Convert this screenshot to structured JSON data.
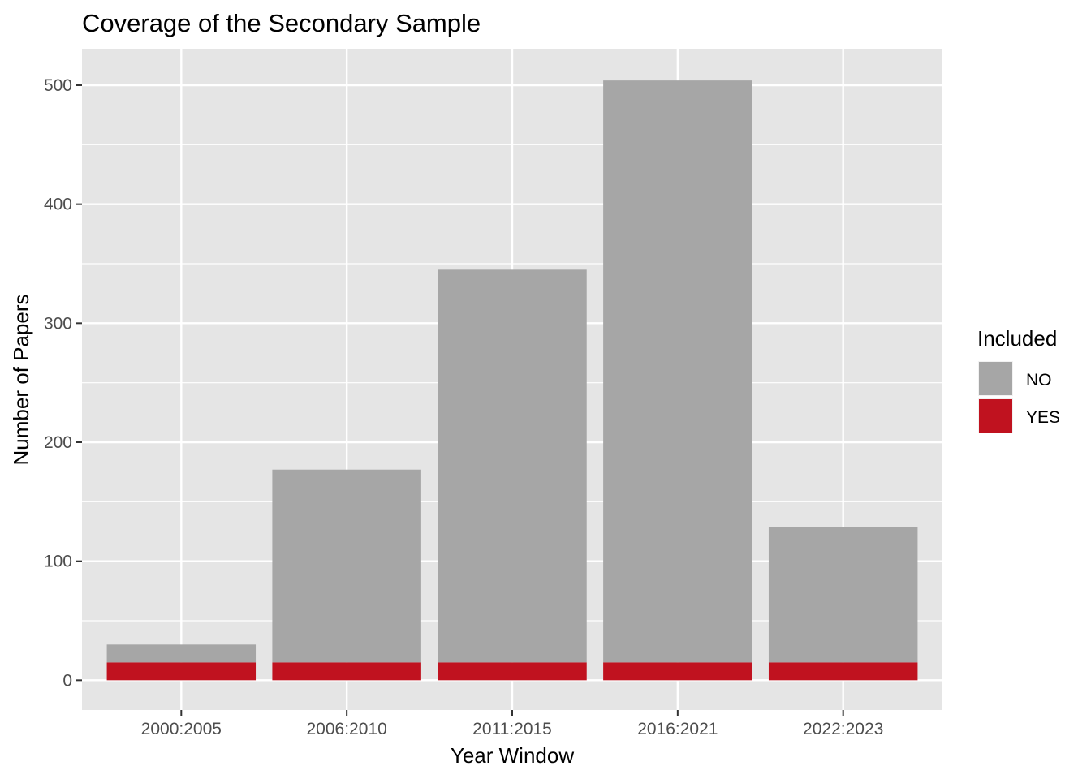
{
  "chart_data": {
    "type": "bar",
    "stacked": true,
    "title": "Coverage of the Secondary Sample",
    "xlabel": "Year Window",
    "ylabel": "Number of Papers",
    "categories": [
      "2000:2005",
      "2006:2010",
      "2011:2015",
      "2016:2021",
      "2022:2023"
    ],
    "series": [
      {
        "name": "YES",
        "color": "#C0121F",
        "values": [
          15,
          15,
          15,
          15,
          15
        ]
      },
      {
        "name": "NO",
        "color": "#A6A6A6",
        "values": [
          15,
          162,
          330,
          489,
          114
        ]
      }
    ],
    "totals": [
      30,
      177,
      345,
      504,
      129
    ],
    "ylim": [
      -25,
      530
    ],
    "yticks": [
      0,
      100,
      200,
      300,
      400,
      500
    ],
    "grid": true,
    "legend": {
      "title": "Included",
      "position": "right",
      "entries": [
        {
          "label": "NO",
          "color": "#A6A6A6"
        },
        {
          "label": "YES",
          "color": "#C0121F"
        }
      ]
    },
    "panel_background": "#E5E5E5",
    "grid_color": "#FFFFFF"
  }
}
